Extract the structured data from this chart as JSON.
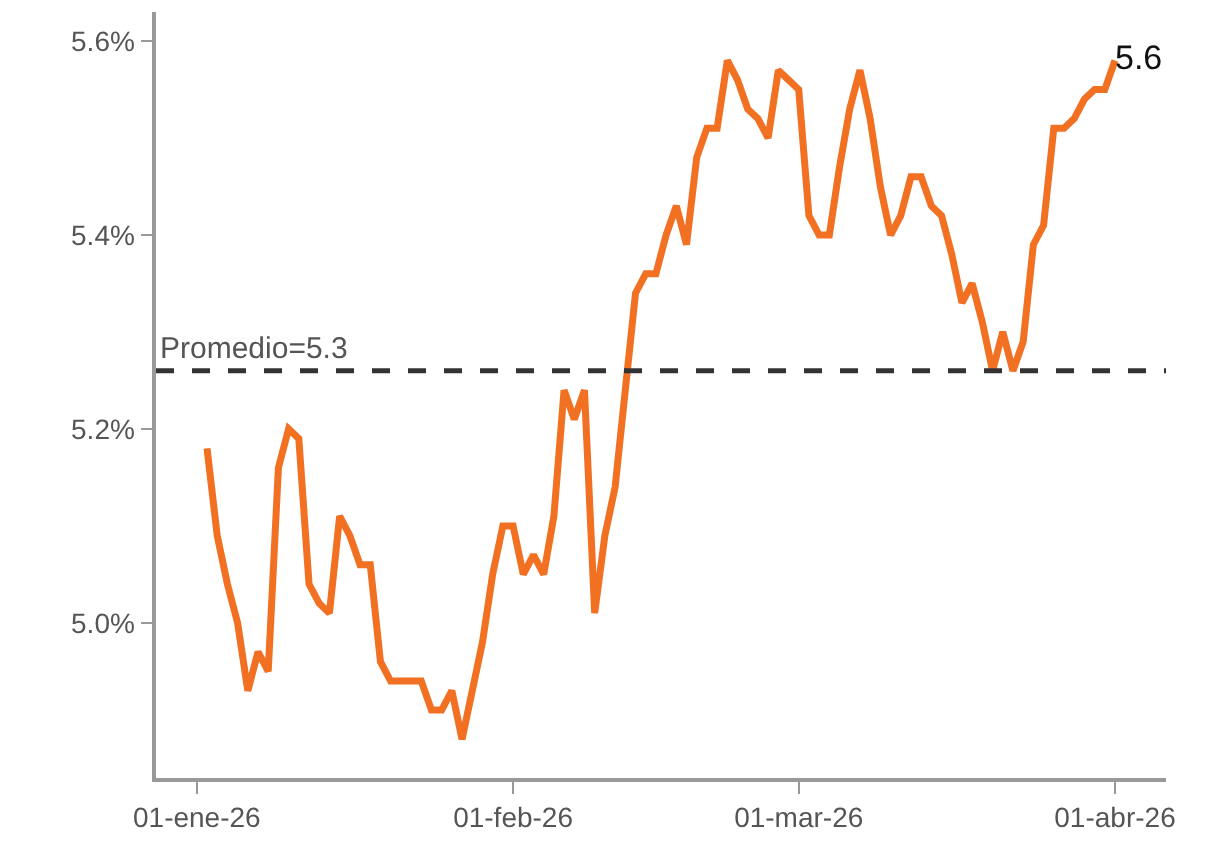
{
  "chart_data": {
    "type": "line",
    "x": [
      "2026-01-02",
      "2026-01-03",
      "2026-01-04",
      "2026-01-05",
      "2026-01-06",
      "2026-01-07",
      "2026-01-08",
      "2026-01-09",
      "2026-01-10",
      "2026-01-11",
      "2026-01-12",
      "2026-01-13",
      "2026-01-14",
      "2026-01-15",
      "2026-01-16",
      "2026-01-17",
      "2026-01-18",
      "2026-01-19",
      "2026-01-20",
      "2026-01-21",
      "2026-01-22",
      "2026-01-23",
      "2026-01-24",
      "2026-01-25",
      "2026-01-26",
      "2026-01-27",
      "2026-01-28",
      "2026-01-29",
      "2026-01-30",
      "2026-01-31",
      "2026-02-01",
      "2026-02-02",
      "2026-02-03",
      "2026-02-04",
      "2026-02-05",
      "2026-02-06",
      "2026-02-07",
      "2026-02-08",
      "2026-02-09",
      "2026-02-10",
      "2026-02-11",
      "2026-02-12",
      "2026-02-13",
      "2026-02-14",
      "2026-02-15",
      "2026-02-16",
      "2026-02-17",
      "2026-02-18",
      "2026-02-19",
      "2026-02-20",
      "2026-02-21",
      "2026-02-22",
      "2026-02-23",
      "2026-02-24",
      "2026-02-25",
      "2026-02-26",
      "2026-02-27",
      "2026-02-28",
      "2026-03-01",
      "2026-03-02",
      "2026-03-03",
      "2026-03-04",
      "2026-03-05",
      "2026-03-06",
      "2026-03-07",
      "2026-03-08",
      "2026-03-09",
      "2026-03-10",
      "2026-03-11",
      "2026-03-12",
      "2026-03-13",
      "2026-03-14",
      "2026-03-15",
      "2026-03-16",
      "2026-03-17",
      "2026-03-18",
      "2026-03-19",
      "2026-03-20",
      "2026-03-21",
      "2026-03-22",
      "2026-03-23",
      "2026-03-24",
      "2026-03-25",
      "2026-03-26",
      "2026-03-27",
      "2026-03-28",
      "2026-03-29",
      "2026-03-30",
      "2026-03-31",
      "2026-04-01"
    ],
    "series": [
      {
        "color": "#f27022",
        "values": [
          5.18,
          5.09,
          5.04,
          5.0,
          4.93,
          4.97,
          4.95,
          5.16,
          5.2,
          5.19,
          5.04,
          5.02,
          5.01,
          5.11,
          5.09,
          5.06,
          5.06,
          4.96,
          4.94,
          4.94,
          4.94,
          4.94,
          4.91,
          4.91,
          4.93,
          4.88,
          4.93,
          4.98,
          5.05,
          5.1,
          5.1,
          5.05,
          5.07,
          5.05,
          5.11,
          5.24,
          5.21,
          5.24,
          5.01,
          5.09,
          5.14,
          5.24,
          5.34,
          5.36,
          5.36,
          5.4,
          5.43,
          5.39,
          5.48,
          5.51,
          5.51,
          5.58,
          5.56,
          5.53,
          5.52,
          5.5,
          5.57,
          5.56,
          5.55,
          5.42,
          5.4,
          5.4,
          5.47,
          5.53,
          5.57,
          5.52,
          5.45,
          5.4,
          5.42,
          5.46,
          5.46,
          5.43,
          5.42,
          5.38,
          5.33,
          5.35,
          5.31,
          5.26,
          5.3,
          5.26,
          5.29,
          5.39,
          5.41,
          5.51,
          5.51,
          5.52,
          5.54,
          5.55,
          5.55,
          5.58
        ],
        "value_labels": [
          null,
          null,
          null,
          null,
          null,
          null,
          null,
          null,
          null,
          null,
          null,
          null,
          null,
          null,
          null,
          null,
          null,
          null,
          null,
          null,
          null,
          null,
          null,
          null,
          null,
          null,
          null,
          null,
          null,
          null,
          null,
          null,
          null,
          null,
          null,
          null,
          null,
          null,
          null,
          null,
          null,
          null,
          null,
          null,
          null,
          null,
          null,
          null,
          null,
          null,
          null,
          null,
          null,
          null,
          null,
          null,
          null,
          null,
          null,
          null,
          null,
          null,
          null,
          null,
          null,
          null,
          null,
          null,
          null,
          null,
          null,
          null,
          null,
          null,
          null,
          null,
          null,
          null,
          null,
          null,
          null,
          null,
          null,
          null,
          null,
          null,
          null,
          null,
          null,
          "5.6"
        ]
      }
    ],
    "xlim": [
      "2025-12-28",
      "2026-04-06"
    ],
    "xticks": [
      {
        "value": "2026-01-01",
        "label": "01-ene-26"
      },
      {
        "value": "2026-02-01",
        "label": "01-feb-26"
      },
      {
        "value": "2026-03-01",
        "label": "01-mar-26"
      },
      {
        "value": "2026-04-01",
        "label": "01-abr-26"
      }
    ],
    "ylim": [
      4.84,
      5.63
    ],
    "yticks": [
      {
        "value": 5.0,
        "label": "5.0%"
      },
      {
        "value": 5.2,
        "label": "5.2%"
      },
      {
        "value": 5.4,
        "label": "5.4%"
      },
      {
        "value": 5.6,
        "label": "5.6%"
      }
    ],
    "ref_lines": [
      {
        "axis": "y",
        "value": 5.26,
        "label": "Promedio=5.3",
        "color": "#333333",
        "line_style": "dashed"
      }
    ],
    "marker": "none",
    "line_style": "solid"
  }
}
